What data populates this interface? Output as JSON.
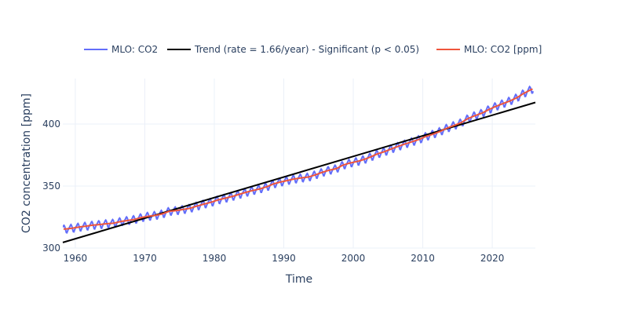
{
  "chart_data": {
    "type": "line",
    "title": "",
    "xlabel": "Time",
    "ylabel": "CO2 concentration [ppm]",
    "xlim": [
      1958.2,
      2026.2
    ],
    "ylim": [
      300,
      436.7
    ],
    "xticks": [
      1960,
      1970,
      1980,
      1990,
      2000,
      2010,
      2020
    ],
    "xtick_labels": [
      "1960",
      "1970",
      "1980",
      "1990",
      "2000",
      "2010",
      "2020"
    ],
    "yticks": [
      300,
      350,
      400
    ],
    "ytick_labels": [
      "300",
      "350",
      "400"
    ],
    "grid": true,
    "legend_placement": "top-center horizontal",
    "colors": {
      "monthly": "#636efa",
      "trend": "#000000",
      "smoothed": "#ef553b"
    },
    "annual_years": [
      1958,
      1959,
      1960,
      1961,
      1962,
      1963,
      1964,
      1965,
      1966,
      1967,
      1968,
      1969,
      1970,
      1971,
      1972,
      1973,
      1974,
      1975,
      1976,
      1977,
      1978,
      1979,
      1980,
      1981,
      1982,
      1983,
      1984,
      1985,
      1986,
      1987,
      1988,
      1989,
      1990,
      1991,
      1992,
      1993,
      1994,
      1995,
      1996,
      1997,
      1998,
      1999,
      2000,
      2001,
      2002,
      2003,
      2004,
      2005,
      2006,
      2007,
      2008,
      2009,
      2010,
      2011,
      2012,
      2013,
      2014,
      2015,
      2016,
      2017,
      2018,
      2019,
      2020,
      2021,
      2022,
      2023,
      2024,
      2025
    ],
    "annual_mean_ppm": [
      315.3,
      315.98,
      316.91,
      317.64,
      318.45,
      318.99,
      319.62,
      320.04,
      321.37,
      322.18,
      323.05,
      324.62,
      325.68,
      326.32,
      327.46,
      329.68,
      330.19,
      331.13,
      332.03,
      333.84,
      335.41,
      336.84,
      338.76,
      340.12,
      341.48,
      343.15,
      344.87,
      346.35,
      347.61,
      349.31,
      351.69,
      353.2,
      354.45,
      355.7,
      356.54,
      357.21,
      358.96,
      360.97,
      362.74,
      363.88,
      366.84,
      368.54,
      369.71,
      371.32,
      373.45,
      375.98,
      377.7,
      379.98,
      382.09,
      384.02,
      385.83,
      387.64,
      390.1,
      391.85,
      394.06,
      396.74,
      398.81,
      401.01,
      404.41,
      406.76,
      408.72,
      411.65,
      414.21,
      416.41,
      418.53,
      421.08,
      424.61,
      427.5
    ],
    "seasonal_offsets_ppm_by_month": [
      0.0,
      0.7,
      1.4,
      2.5,
      3.0,
      2.3,
      0.8,
      -1.3,
      -3.0,
      -3.2,
      -2.0,
      -0.9
    ],
    "series": [
      {
        "name": "MLO: CO2",
        "kind": "monthly (annual mean + seasonal offset)"
      },
      {
        "name": "Trend (rate = 1.66/year) - Significant (p < 0.05)",
        "kind": "linear",
        "x": [
          1958.2,
          2026.2
        ],
        "y": [
          304.5,
          417.4
        ]
      },
      {
        "name": "MLO: CO2 [ppm]",
        "kind": "smoothed annual mean"
      }
    ]
  }
}
